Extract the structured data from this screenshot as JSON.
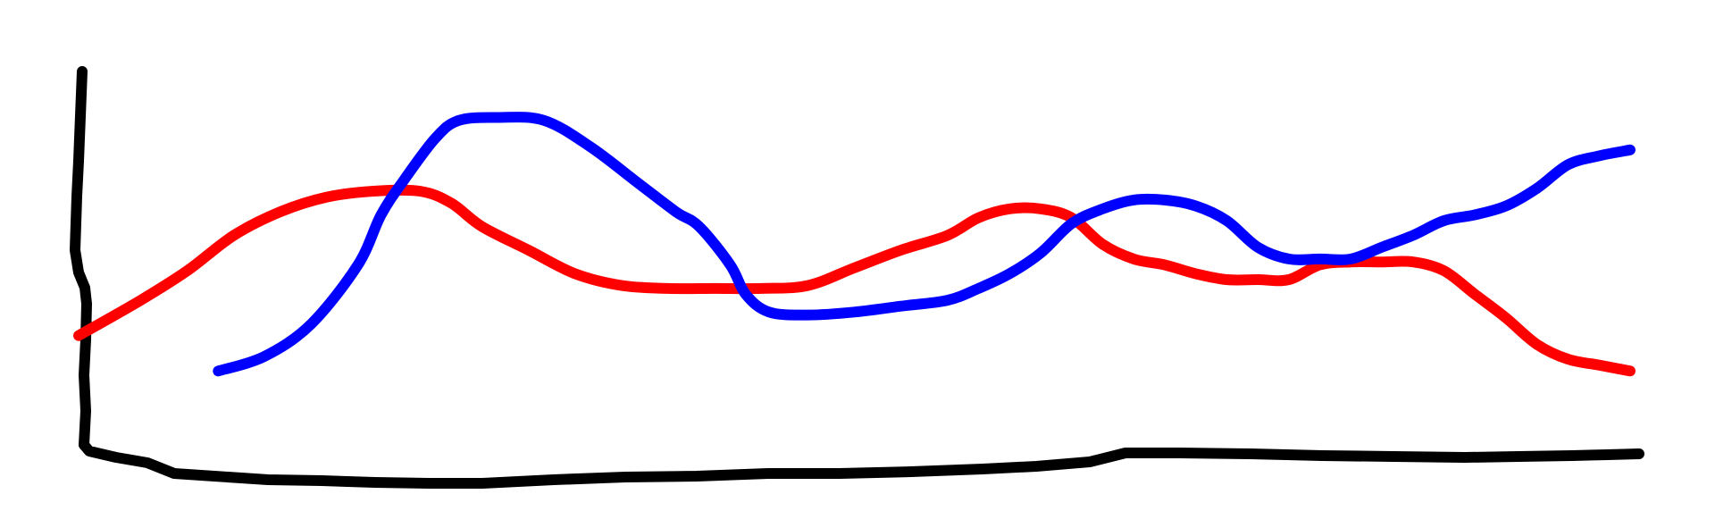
{
  "chart_data": {
    "type": "line",
    "title": "",
    "xlabel": "",
    "ylabel": "",
    "grid": false,
    "legend": "none",
    "xlim": [
      0,
      100
    ],
    "ylim": [
      0,
      100
    ],
    "axis_color": "#000000",
    "series": [
      {
        "color": "#ff0000",
        "x": [
          0,
          4,
          7,
          10,
          13,
          16,
          19,
          22,
          24,
          26,
          29,
          32,
          35,
          38,
          41,
          44,
          47,
          50,
          53,
          56,
          58,
          60,
          62,
          64,
          66,
          68,
          70,
          72,
          74,
          76,
          78,
          80,
          82,
          84,
          86,
          88,
          90,
          92,
          94,
          96,
          98,
          100
        ],
        "y": [
          21,
          33,
          43,
          55,
          63,
          68,
          70,
          70,
          66,
          58,
          50,
          42,
          38,
          37,
          37,
          37,
          38,
          44,
          50,
          55,
          61,
          64,
          64,
          61,
          52,
          47,
          45,
          42,
          40,
          40,
          40,
          45,
          46,
          46,
          46,
          43,
          35,
          27,
          18,
          13,
          11,
          9
        ]
      },
      {
        "color": "#0000ff",
        "x": [
          9,
          12,
          15,
          18,
          19.5,
          21,
          23,
          24.5,
          27,
          30,
          33,
          36,
          38.5,
          40,
          42,
          43,
          44.5,
          47,
          50,
          53,
          56,
          58,
          60,
          62,
          64,
          66,
          68,
          70,
          72,
          74,
          76,
          78,
          80,
          82,
          84,
          86,
          88,
          90,
          92,
          94,
          96,
          98,
          100
        ],
        "y": [
          9,
          14,
          25,
          45,
          62,
          74,
          88,
          94,
          95,
          94,
          85,
          73,
          63,
          58,
          45,
          35,
          29,
          28,
          29,
          31,
          33,
          37,
          42,
          49,
          59,
          64,
          67,
          67,
          65,
          60,
          51,
          47,
          47,
          47,
          51,
          55,
          60,
          62,
          65,
          71,
          79,
          82,
          84
        ]
      }
    ]
  }
}
